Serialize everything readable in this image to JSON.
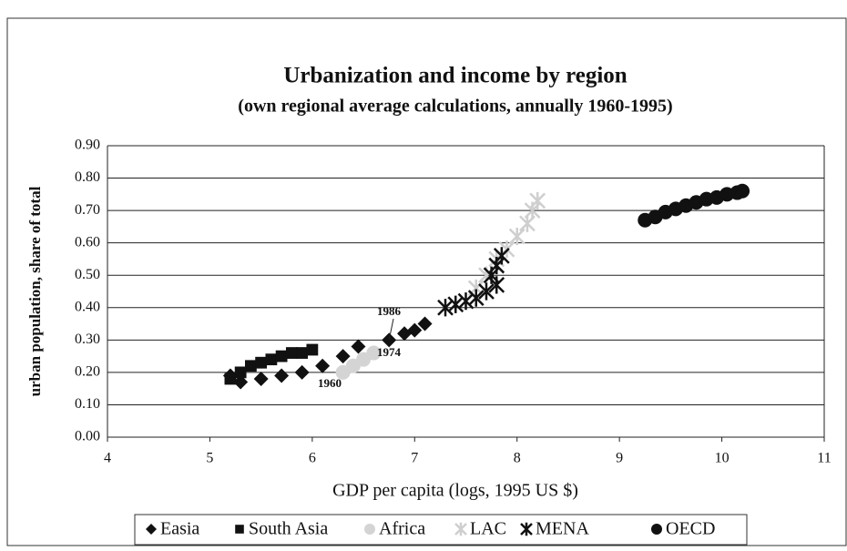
{
  "chart_data": {
    "type": "scatter",
    "title": "Urbanization and income by region",
    "subtitle": "(own regional average calculations, annually 1960-1995)",
    "x_label": "GDP per capita (logs, 1995 US $)",
    "y_label": "urban population, share of total",
    "xlim": [
      4,
      11
    ],
    "xticks": [
      4,
      5,
      6,
      7,
      8,
      9,
      10,
      11
    ],
    "ylim": [
      0,
      0.9
    ],
    "yticks": [
      {
        "value": 0,
        "label": "0.00"
      },
      {
        "value": 0.1,
        "label": "0.10"
      },
      {
        "value": 0.2,
        "label": "0.20"
      },
      {
        "value": 0.3,
        "label": "0.30"
      },
      {
        "value": 0.4,
        "label": "0.40"
      },
      {
        "value": 0.5,
        "label": "0.50"
      },
      {
        "value": 0.6,
        "label": "0.60"
      },
      {
        "value": 0.7,
        "label": "0.70"
      },
      {
        "value": 0.8,
        "label": "0.80"
      },
      {
        "value": 0.9,
        "label": "0.90"
      }
    ],
    "grid": true,
    "legend": "bottom",
    "annotations": [
      "1986",
      "1974",
      "1960"
    ],
    "series": [
      {
        "name": "Easia",
        "color": "#111111",
        "marker": "diamond",
        "x": [
          5.2,
          5.3,
          5.5,
          5.7,
          5.9,
          6.1,
          6.3,
          6.45,
          6.75,
          6.9,
          7.0,
          7.1
        ],
        "values": [
          0.19,
          0.17,
          0.18,
          0.19,
          0.2,
          0.22,
          0.25,
          0.28,
          0.3,
          0.32,
          0.33,
          0.35
        ]
      },
      {
        "name": "South Asia",
        "color": "#111111",
        "marker": "square",
        "x": [
          5.2,
          5.3,
          5.4,
          5.5,
          5.6,
          5.7,
          5.8,
          5.9,
          6.0
        ],
        "values": [
          0.18,
          0.2,
          0.22,
          0.23,
          0.24,
          0.25,
          0.26,
          0.26,
          0.27
        ]
      },
      {
        "name": "Africa",
        "color": "#d4d4d4",
        "marker": "circle",
        "x": [
          6.3,
          6.4,
          6.5,
          6.6
        ],
        "values": [
          0.2,
          0.22,
          0.24,
          0.26
        ]
      },
      {
        "name": "LAC",
        "color": "#cfcfcf",
        "marker": "asterisk",
        "x": [
          7.6,
          7.7,
          7.8,
          7.9,
          8.0,
          8.1,
          8.15,
          8.2
        ],
        "values": [
          0.46,
          0.5,
          0.55,
          0.58,
          0.62,
          0.66,
          0.7,
          0.73
        ]
      },
      {
        "name": "MENA",
        "color": "#111111",
        "marker": "asterisk",
        "x": [
          7.3,
          7.4,
          7.5,
          7.6,
          7.7,
          7.8,
          7.75,
          7.8,
          7.85
        ],
        "values": [
          0.4,
          0.41,
          0.42,
          0.43,
          0.45,
          0.47,
          0.5,
          0.53,
          0.56
        ]
      },
      {
        "name": "OECD",
        "color": "#111111",
        "marker": "circle",
        "x": [
          9.25,
          9.35,
          9.45,
          9.55,
          9.65,
          9.75,
          9.85,
          9.95,
          10.05,
          10.15,
          10.2
        ],
        "values": [
          0.67,
          0.68,
          0.695,
          0.705,
          0.715,
          0.725,
          0.735,
          0.74,
          0.75,
          0.755,
          0.76
        ]
      }
    ]
  }
}
